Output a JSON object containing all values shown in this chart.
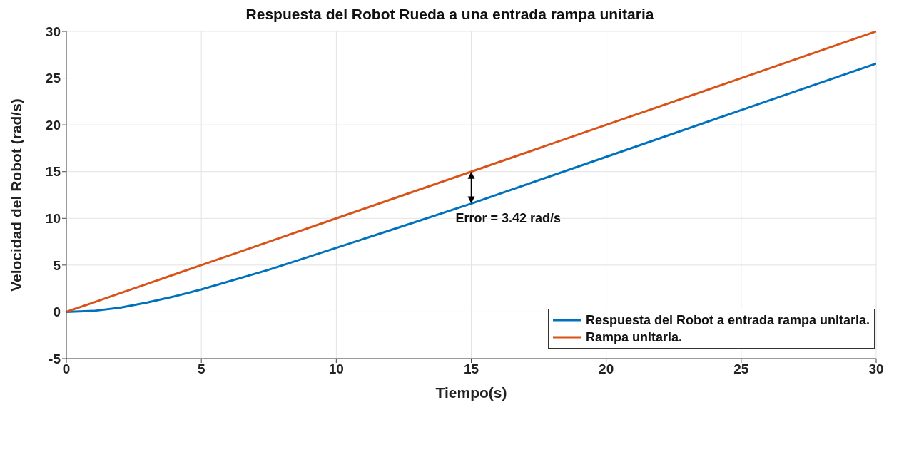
{
  "chart_data": {
    "type": "line",
    "title": "Respuesta del Robot Rueda a una entrada rampa unitaria",
    "xlabel": "Tiempo(s)",
    "ylabel": "Velocidad del Robot (rad/s)",
    "x": [
      0,
      1,
      2,
      3,
      4,
      5,
      7.5,
      10,
      12.5,
      15,
      20,
      25,
      30
    ],
    "series": [
      {
        "name": "Respuesta del Robot a entrada rampa unitaria.",
        "color": "#0072bd",
        "values": [
          0,
          0.1,
          0.45,
          1.0,
          1.65,
          2.4,
          4.5,
          6.85,
          9.2,
          11.58,
          16.58,
          21.58,
          26.55
        ]
      },
      {
        "name": "Rampa unitaria.",
        "color": "#d95319",
        "values": [
          0,
          1,
          2,
          3,
          4,
          5,
          7.5,
          10,
          12.5,
          15,
          20,
          25,
          30
        ]
      }
    ],
    "annotations": [
      {
        "text": "Error = 3.42 rad/s",
        "x": 15,
        "y": 11.58
      }
    ],
    "xlim": [
      0,
      30
    ],
    "xticks": [
      0,
      5,
      10,
      15,
      20,
      25,
      30
    ],
    "ylim": [
      -5,
      30
    ],
    "yticks": [
      -5,
      0,
      5,
      10,
      15,
      20,
      25,
      30
    ],
    "grid": true,
    "legend": "bottom right",
    "marker": "none",
    "line_style": "solid"
  }
}
